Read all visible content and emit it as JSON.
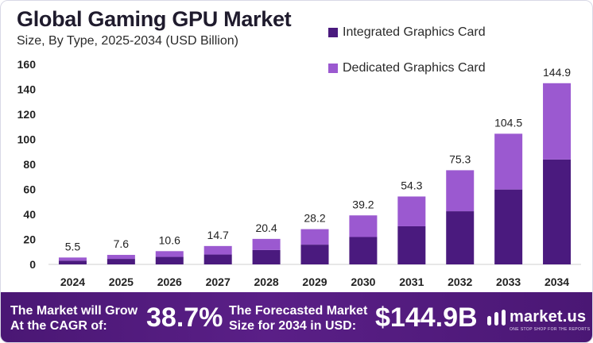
{
  "chart_data": {
    "type": "bar",
    "stacked": true,
    "title": "Global Gaming GPU Market",
    "subtitle": "Size, By Type, 2025-2034 (USD Billion)",
    "categories": [
      "2024",
      "2025",
      "2026",
      "2027",
      "2028",
      "2029",
      "2030",
      "2031",
      "2032",
      "2033",
      "2034"
    ],
    "series": [
      {
        "name": "Integrated Graphics Card",
        "color": "#4a1a7e",
        "values": [
          3.0,
          4.4,
          6.0,
          7.9,
          11.5,
          15.8,
          21.9,
          30.5,
          42.5,
          59.9,
          83.9
        ]
      },
      {
        "name": "Dedicated Graphics Card",
        "color": "#9b59d0",
        "values": [
          2.5,
          3.2,
          4.6,
          6.8,
          8.9,
          12.4,
          17.3,
          23.8,
          32.8,
          44.6,
          61.0
        ]
      }
    ],
    "totals": [
      "5.5",
      "7.6",
      "10.6",
      "14.7",
      "20.4",
      "28.2",
      "39.2",
      "54.3",
      "75.3",
      "104.5",
      "144.9"
    ],
    "ylim": [
      0,
      160
    ],
    "yticks": [
      0,
      20,
      40,
      60,
      80,
      100,
      120,
      140,
      160
    ],
    "grid": false,
    "legend_position": "top-right"
  },
  "footer": {
    "cagr_label_line1": "The Market will Grow",
    "cagr_label_line2": "At the CAGR of:",
    "cagr_value": "38.7%",
    "forecast_label_line1": "The Forecasted Market",
    "forecast_label_line2": "Size for 2034 in USD:",
    "forecast_value": "$144.9B",
    "brand_name": "market.us",
    "brand_tagline": "ONE STOP SHOP FOR THE REPORTS"
  }
}
